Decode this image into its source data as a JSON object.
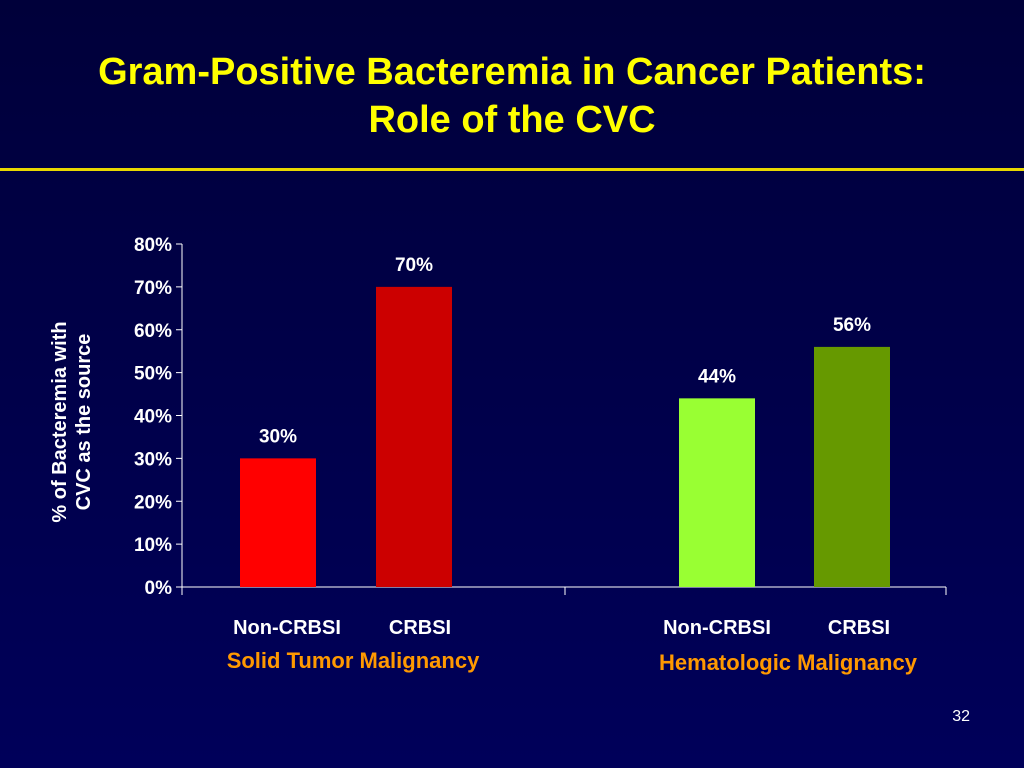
{
  "slide": {
    "title_line1": "Gram-Positive Bacteremia in Cancer Patients:",
    "title_line2": "Role of the CVC",
    "page_number": "32"
  },
  "colors": {
    "background": "#000048",
    "title": "#ffff00",
    "rule": "#e8d700",
    "group_label": "#ff9900",
    "text": "#ffffff"
  },
  "chart_data": {
    "type": "bar",
    "title": "",
    "ylabel_line1": "% of Bacteremia with",
    "ylabel_line2": "CVC as the source",
    "ylim": [
      0,
      80
    ],
    "yticks": [
      "0%",
      "10%",
      "20%",
      "30%",
      "40%",
      "50%",
      "60%",
      "70%",
      "80%"
    ],
    "grid": false,
    "groups": [
      {
        "name": "Solid Tumor Malignancy",
        "categories": [
          "Non-CRBSI",
          "CRBSI"
        ],
        "values": [
          30,
          70
        ],
        "value_labels": [
          "30%",
          "70%"
        ],
        "colors": [
          "#ff0000",
          "#cc0000"
        ]
      },
      {
        "name": "Hematologic Malignancy",
        "categories": [
          "Non-CRBSI",
          "CRBSI"
        ],
        "values": [
          44,
          56
        ],
        "value_labels": [
          "44%",
          "56%"
        ],
        "colors": [
          "#99ff33",
          "#669900"
        ]
      }
    ]
  }
}
